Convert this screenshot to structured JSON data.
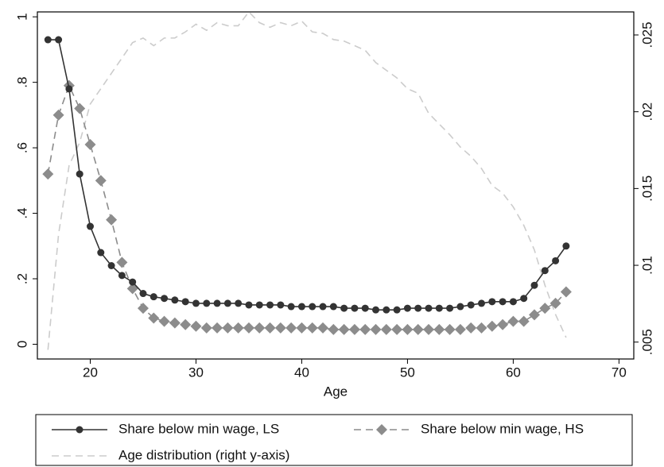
{
  "chart_data": {
    "type": "line",
    "x_label": "Age",
    "x": [
      16,
      17,
      18,
      19,
      20,
      21,
      22,
      23,
      24,
      25,
      26,
      27,
      28,
      29,
      30,
      31,
      32,
      33,
      34,
      35,
      36,
      37,
      38,
      39,
      40,
      41,
      42,
      43,
      44,
      45,
      46,
      47,
      48,
      49,
      50,
      51,
      52,
      53,
      54,
      55,
      56,
      57,
      58,
      59,
      60,
      61,
      62,
      63,
      64,
      65
    ],
    "xlim": [
      15,
      71.4
    ],
    "xticks": [
      20,
      30,
      40,
      50,
      60,
      70
    ],
    "ylim": [
      -0.045,
      1.015
    ],
    "yticks": [
      0,
      {
        "value": 0.2,
        "label": ".2"
      },
      {
        "value": 0.4,
        "label": ".4"
      },
      {
        "value": 0.6,
        "label": ".6"
      },
      {
        "value": 0.8,
        "label": ".8"
      },
      1
    ],
    "y2lim": [
      0.0039,
      0.0265
    ],
    "y2ticks": [
      {
        "value": 0.005,
        "label": ".005"
      },
      {
        "value": 0.01,
        "label": ".01"
      },
      {
        "value": 0.015,
        "label": ".015"
      },
      {
        "value": 0.02,
        "label": ".02"
      },
      {
        "value": 0.025,
        "label": ".025"
      }
    ],
    "series": [
      {
        "name": "Share below min wage, LS",
        "color": "#333333",
        "marker": "circle",
        "dash": "solid",
        "values": [
          0.93,
          0.93,
          0.78,
          0.52,
          0.36,
          0.28,
          0.24,
          0.21,
          0.19,
          0.155,
          0.145,
          0.14,
          0.135,
          0.13,
          0.125,
          0.125,
          0.125,
          0.125,
          0.125,
          0.12,
          0.12,
          0.12,
          0.12,
          0.115,
          0.115,
          0.115,
          0.115,
          0.115,
          0.11,
          0.11,
          0.11,
          0.105,
          0.105,
          0.105,
          0.11,
          0.11,
          0.11,
          0.11,
          0.11,
          0.115,
          0.12,
          0.125,
          0.13,
          0.13,
          0.13,
          0.14,
          0.18,
          0.225,
          0.255,
          0.3
        ]
      },
      {
        "name": "Share below min wage, HS",
        "color": "#8c8c8c",
        "marker": "diamond",
        "dash": "dashed",
        "values": [
          0.52,
          0.7,
          0.79,
          0.72,
          0.61,
          0.5,
          0.38,
          0.25,
          0.17,
          0.11,
          0.08,
          0.07,
          0.065,
          0.06,
          0.055,
          0.05,
          0.05,
          0.05,
          0.05,
          0.05,
          0.05,
          0.05,
          0.05,
          0.05,
          0.05,
          0.05,
          0.05,
          0.045,
          0.045,
          0.045,
          0.045,
          0.045,
          0.045,
          0.045,
          0.045,
          0.045,
          0.045,
          0.045,
          0.045,
          0.045,
          0.05,
          0.05,
          0.055,
          0.06,
          0.07,
          0.07,
          0.09,
          0.11,
          0.125,
          0.16
        ]
      },
      {
        "name": "Age distribution (right y-axis)",
        "color": "#cccccc",
        "marker": "none",
        "dash": "dashed",
        "axis": "y2",
        "values": [
          0.0045,
          0.012,
          0.0165,
          0.018,
          0.0205,
          0.0215,
          0.0225,
          0.0235,
          0.0245,
          0.0248,
          0.0243,
          0.0248,
          0.0248,
          0.0252,
          0.0257,
          0.0253,
          0.0258,
          0.0256,
          0.0256,
          0.0265,
          0.0258,
          0.0255,
          0.0258,
          0.0256,
          0.0259,
          0.0252,
          0.0251,
          0.0247,
          0.0246,
          0.0243,
          0.024,
          0.0232,
          0.0227,
          0.0222,
          0.0215,
          0.0212,
          0.0199,
          0.0192,
          0.0185,
          0.0177,
          0.0171,
          0.0163,
          0.0152,
          0.0147,
          0.0138,
          0.0126,
          0.011,
          0.0087,
          0.0068,
          0.0053
        ]
      }
    ]
  }
}
